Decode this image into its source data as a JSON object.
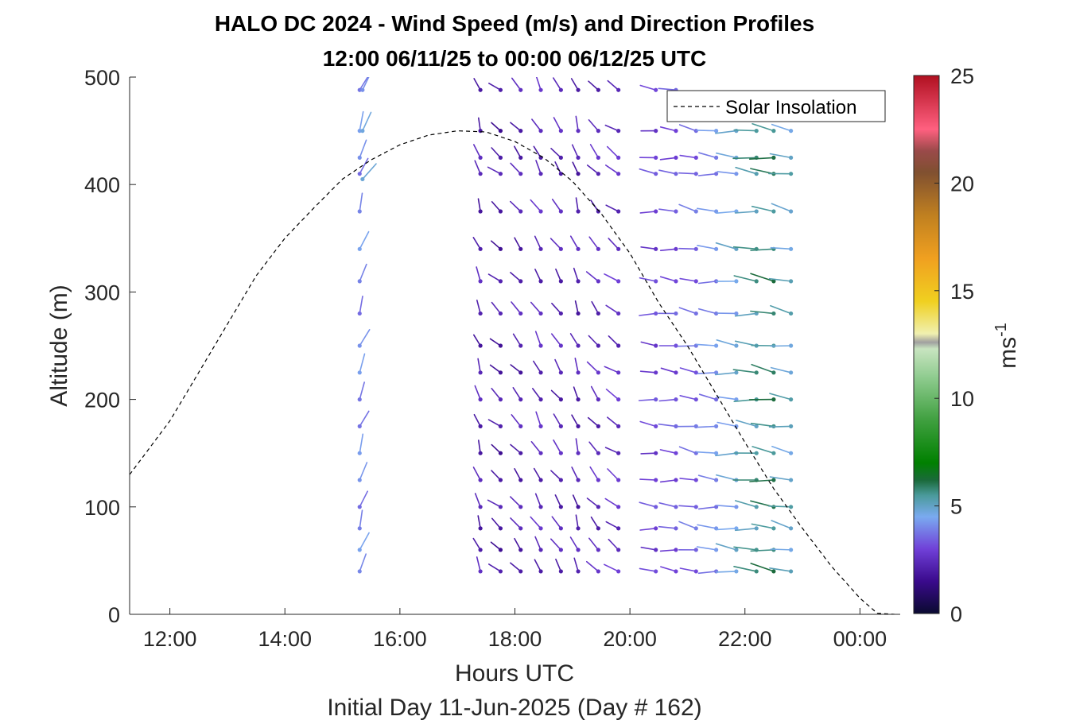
{
  "chart_data": {
    "type": "quiver",
    "title": "HALO DC 2024 - Wind Speed (m/s) and Direction Profiles",
    "subtitle": "12:00 06/11/25 to 00:00 06/12/25  UTC",
    "xlabel": "Hours UTC",
    "xlabel2": "Initial Day 11-Jun-2025 (Day # 162)",
    "ylabel": "Altitude (m)",
    "x_range_hours": [
      11.3,
      24.7
    ],
    "ylim": [
      0,
      500
    ],
    "x_ticks": [
      {
        "value": 12,
        "label": "12:00"
      },
      {
        "value": 14,
        "label": "14:00"
      },
      {
        "value": 16,
        "label": "16:00"
      },
      {
        "value": 18,
        "label": "18:00"
      },
      {
        "value": 20,
        "label": "20:00"
      },
      {
        "value": 22,
        "label": "22:00"
      },
      {
        "value": 24,
        "label": "00:00"
      }
    ],
    "y_ticks": [
      {
        "value": 0,
        "label": "0"
      },
      {
        "value": 100,
        "label": "100"
      },
      {
        "value": 200,
        "label": "200"
      },
      {
        "value": 300,
        "label": "300"
      },
      {
        "value": 400,
        "label": "400"
      },
      {
        "value": 500,
        "label": "500"
      }
    ],
    "colorbar": {
      "label": "ms",
      "label_exponent": "-1",
      "range": [
        0,
        25
      ],
      "ticks": [
        {
          "value": 0,
          "label": "0"
        },
        {
          "value": 5,
          "label": "5"
        },
        {
          "value": 10,
          "label": "10"
        },
        {
          "value": 15,
          "label": "15"
        },
        {
          "value": 20,
          "label": "20"
        },
        {
          "value": 25,
          "label": "25"
        }
      ],
      "stops": [
        {
          "v": 0,
          "c": "#0a0a30"
        },
        {
          "v": 1.5,
          "c": "#3a0a8c"
        },
        {
          "v": 3,
          "c": "#7040d8"
        },
        {
          "v": 4.5,
          "c": "#7aaaf0"
        },
        {
          "v": 5.5,
          "c": "#4a9a9a"
        },
        {
          "v": 6.2,
          "c": "#1a6a3a"
        },
        {
          "v": 7,
          "c": "#008000"
        },
        {
          "v": 9,
          "c": "#40a040"
        },
        {
          "v": 11,
          "c": "#90cc90"
        },
        {
          "v": 12.3,
          "c": "#c8e4c0"
        },
        {
          "v": 12.6,
          "c": "#a0a0a0"
        },
        {
          "v": 13,
          "c": "#f0f0b0"
        },
        {
          "v": 14.5,
          "c": "#f0d020"
        },
        {
          "v": 16.5,
          "c": "#f0a020"
        },
        {
          "v": 18.5,
          "c": "#c08020"
        },
        {
          "v": 20.5,
          "c": "#805030"
        },
        {
          "v": 21.5,
          "c": "#9a4a4a"
        },
        {
          "v": 22.5,
          "c": "#ff6080"
        },
        {
          "v": 25,
          "c": "#b01020"
        }
      ]
    },
    "legend": {
      "position": "top-right",
      "entries": [
        "Solar Insolation"
      ]
    },
    "solar_insolation": {
      "style": "dashed",
      "color": "#000000",
      "x": [
        11.3,
        12,
        12.5,
        13,
        13.5,
        14,
        14.5,
        15,
        15.5,
        16,
        16.5,
        17,
        17.5,
        18,
        18.5,
        19,
        19.5,
        20,
        20.5,
        21,
        21.5,
        22,
        22.5,
        23,
        23.5,
        24,
        24.3,
        24.6
      ],
      "y": [
        130,
        180,
        225,
        270,
        315,
        350,
        378,
        405,
        423,
        437,
        446,
        450,
        449,
        440,
        425,
        403,
        373,
        336,
        290,
        250,
        205,
        160,
        117,
        80,
        45,
        15,
        1,
        0
      ]
    },
    "wind_profiles": [
      {
        "time": 15.3,
        "altitudes": [
          40,
          60,
          80,
          100,
          125,
          150,
          175,
          200,
          225,
          250,
          280,
          310,
          340,
          375,
          410,
          425,
          450,
          488
        ],
        "speed": 4,
        "dir": 200
      },
      {
        "time": 15.35,
        "altitudes": [
          405,
          450,
          488
        ],
        "speed": 4.5,
        "dir": 210
      },
      {
        "time": 17.4,
        "altitudes": [
          40,
          60,
          80,
          100,
          125,
          150,
          175,
          200,
          225,
          250,
          280,
          310,
          340,
          375,
          410,
          425,
          450,
          488
        ],
        "speed": 2.2,
        "dir": 160
      },
      {
        "time": 17.75,
        "altitudes": [
          40,
          60,
          80,
          100,
          125,
          150,
          175,
          200,
          225,
          250,
          280,
          310,
          340,
          375,
          410,
          425,
          450,
          488
        ],
        "speed": 2.0,
        "dir": 130
      },
      {
        "time": 18.1,
        "altitudes": [
          40,
          60,
          80,
          100,
          125,
          150,
          175,
          200,
          225,
          250,
          280,
          310,
          340,
          375,
          410,
          425,
          450,
          488
        ],
        "speed": 2.2,
        "dir": 140
      },
      {
        "time": 18.45,
        "altitudes": [
          40,
          60,
          80,
          100,
          125,
          150,
          175,
          200,
          225,
          250,
          280,
          310,
          340,
          375,
          410,
          425,
          450,
          488
        ],
        "speed": 2.4,
        "dir": 150
      },
      {
        "time": 18.8,
        "altitudes": [
          40,
          60,
          80,
          100,
          125,
          150,
          175,
          200,
          225,
          250,
          280,
          310,
          340,
          375,
          410,
          425,
          450,
          488
        ],
        "speed": 2.3,
        "dir": 145
      },
      {
        "time": 19.1,
        "altitudes": [
          40,
          60,
          80,
          100,
          125,
          150,
          175,
          200,
          225,
          250,
          280,
          310,
          340,
          375,
          410,
          425,
          450,
          488
        ],
        "speed": 2.2,
        "dir": 160
      },
      {
        "time": 19.45,
        "altitudes": [
          40,
          60,
          80,
          100,
          125,
          150,
          175,
          200,
          225,
          250,
          280,
          310,
          340,
          375,
          410,
          425,
          450,
          488
        ],
        "speed": 2.4,
        "dir": 140
      },
      {
        "time": 19.8,
        "altitudes": [
          40,
          60,
          80,
          100,
          125,
          150,
          175,
          200,
          225,
          250,
          280,
          310,
          340,
          375,
          410,
          425,
          450,
          488
        ],
        "speed": 2.6,
        "dir": 125
      },
      {
        "time": 20.45,
        "altitudes": [
          40,
          60,
          80,
          100,
          125,
          150,
          175,
          200,
          225,
          250,
          280,
          310,
          340,
          375,
          410,
          425,
          450,
          488
        ],
        "speed": 3.0,
        "dir": 95
      },
      {
        "time": 20.8,
        "altitudes": [
          40,
          60,
          80,
          100,
          125,
          150,
          175,
          200,
          225,
          250,
          280,
          310,
          340,
          375,
          410,
          425,
          450,
          488
        ],
        "speed": 3.2,
        "dir": 95
      },
      {
        "time": 21.15,
        "altitudes": [
          40,
          60,
          80,
          100,
          125,
          150,
          175,
          200,
          225,
          250,
          280,
          310,
          340,
          375,
          410,
          425,
          450
        ],
        "speed": 3.5,
        "dir": 100
      },
      {
        "time": 21.5,
        "altitudes": [
          40,
          60,
          80,
          100,
          125,
          150,
          175,
          200,
          225,
          250,
          280,
          310,
          340,
          375,
          410,
          425,
          450
        ],
        "speed": 4.0,
        "dir": 95
      },
      {
        "time": 21.85,
        "altitudes": [
          40,
          60,
          80,
          100,
          125,
          150,
          175,
          200,
          225,
          250,
          280,
          310,
          340,
          375,
          410,
          425,
          450
        ],
        "speed": 4.6,
        "dir": 95
      },
      {
        "time": 22.2,
        "altitudes": [
          40,
          60,
          80,
          100,
          125,
          150,
          175,
          200,
          225,
          250,
          280,
          310,
          340,
          375,
          410,
          425,
          450
        ],
        "speed": 5.4,
        "dir": 95
      },
      {
        "time": 22.5,
        "altitudes": [
          40,
          60,
          80,
          100,
          125,
          150,
          175,
          200,
          225,
          250,
          280,
          310,
          340,
          375,
          410,
          425,
          450
        ],
        "speed": 5.8,
        "dir": 98
      },
      {
        "time": 22.8,
        "altitudes": [
          40,
          60,
          80,
          100,
          125,
          150,
          175,
          200,
          225,
          250,
          280,
          310,
          340,
          375,
          410,
          425,
          450
        ],
        "speed": 5.0,
        "dir": 100
      }
    ]
  }
}
